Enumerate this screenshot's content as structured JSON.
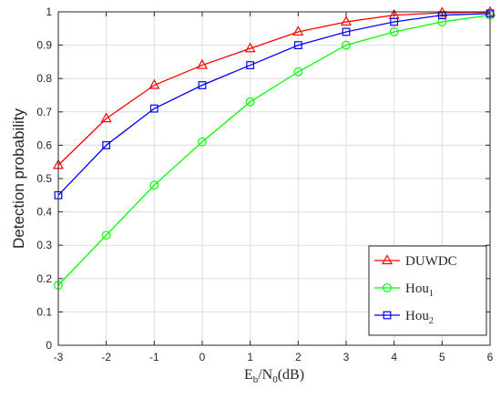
{
  "chart_data": {
    "type": "line",
    "xlabel": {
      "main": "E",
      "sub1": "b",
      "mid": "/N",
      "sub2": "0",
      "tail": "(dB)"
    },
    "ylabel": "Detection probability",
    "x": [
      -3,
      -2,
      -1,
      0,
      1,
      2,
      3,
      4,
      5,
      6
    ],
    "xlim": [
      -3,
      6
    ],
    "ylim": [
      0,
      1
    ],
    "xticks": [
      "-3",
      "-2",
      "-1",
      "0",
      "1",
      "2",
      "3",
      "4",
      "5",
      "6"
    ],
    "yticks": [
      "0",
      "0.1",
      "0.2",
      "0.3",
      "0.4",
      "0.5",
      "0.6",
      "0.7",
      "0.8",
      "0.9",
      "1"
    ],
    "grid": true,
    "legend_position": "bottom-right",
    "series": [
      {
        "name": "DUWDC",
        "name_base": "DUWDC",
        "name_sub": "",
        "color": "#ff0000",
        "marker": "triangle",
        "values": [
          0.54,
          0.68,
          0.78,
          0.84,
          0.89,
          0.94,
          0.97,
          0.99,
          0.997,
          0.999
        ]
      },
      {
        "name": "Hou1",
        "name_base": "Hou",
        "name_sub": "1",
        "color": "#00ff00",
        "marker": "circle",
        "values": [
          0.18,
          0.33,
          0.48,
          0.61,
          0.73,
          0.82,
          0.9,
          0.94,
          0.97,
          0.99
        ]
      },
      {
        "name": "Hou2",
        "name_base": "Hou",
        "name_sub": "2",
        "color": "#0000ff",
        "marker": "square",
        "values": [
          0.45,
          0.6,
          0.71,
          0.78,
          0.84,
          0.9,
          0.94,
          0.97,
          0.99,
          0.995
        ]
      }
    ]
  }
}
